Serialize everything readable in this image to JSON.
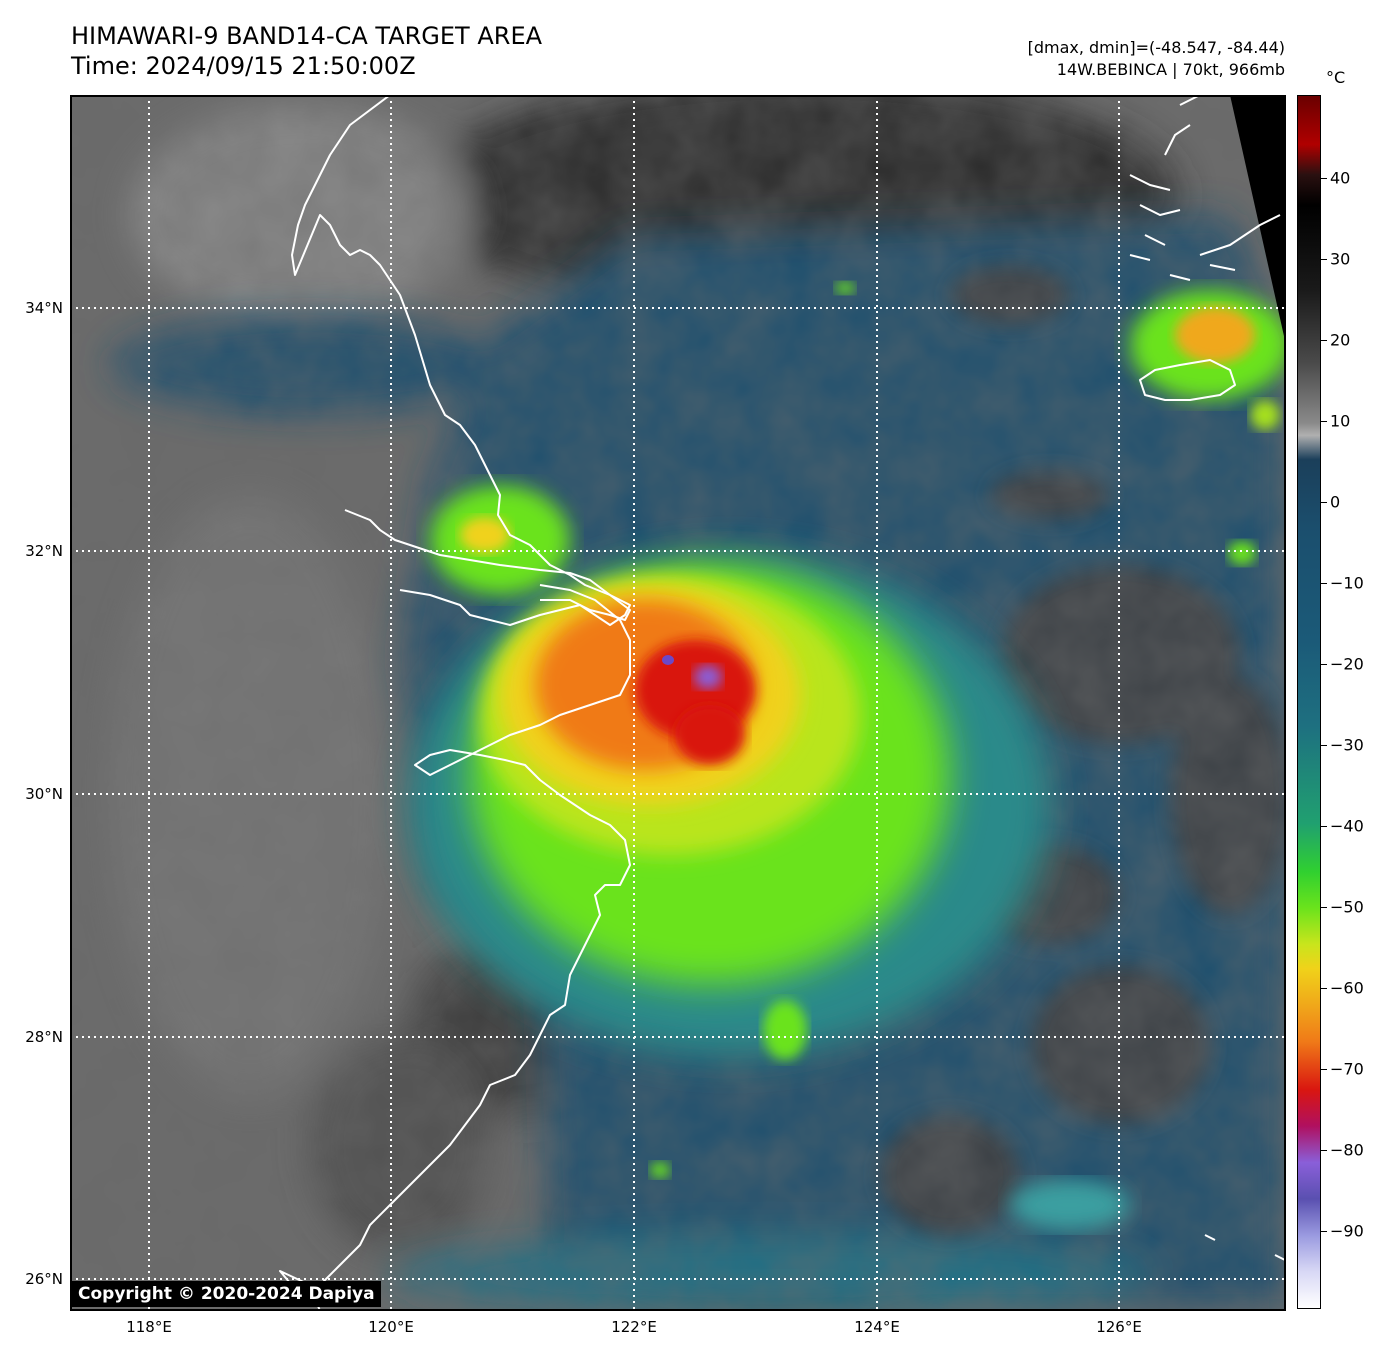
{
  "title": {
    "line1": "HIMAWARI-9 BAND14-CA TARGET AREA",
    "line2": "Time: 2024/09/15 21:50:00Z"
  },
  "info": {
    "line1": "[dmax, dmin]=(-48.547, -84.44)",
    "line2": "14W.BEBINCA | 70kt, 966mb"
  },
  "latitude_labels": [
    "34°N",
    "32°N",
    "30°N",
    "28°N",
    "26°N"
  ],
  "longitude_labels": [
    "118°E",
    "120°E",
    "122°E",
    "124°E",
    "126°E"
  ],
  "copyright": "Copyright © 2020-2024 Dapiya",
  "colorbar": {
    "unit": "°C",
    "ticks": [
      "40",
      "30",
      "20",
      "10",
      "0",
      "−10",
      "−20",
      "−30",
      "−40",
      "−50",
      "−60",
      "−70",
      "−80",
      "−90"
    ]
  },
  "colors": {
    "warm_ground": "#6a6a6a",
    "cloud_blue": "#1b4f6e",
    "cold_top_green": "#6be31c",
    "cold_top_yellow": "#f0d21a",
    "cold_top_orange": "#f07a18",
    "core_red": "#d91610",
    "eye_purple": "#8a5fd9",
    "coastline": "#ffffff"
  }
}
